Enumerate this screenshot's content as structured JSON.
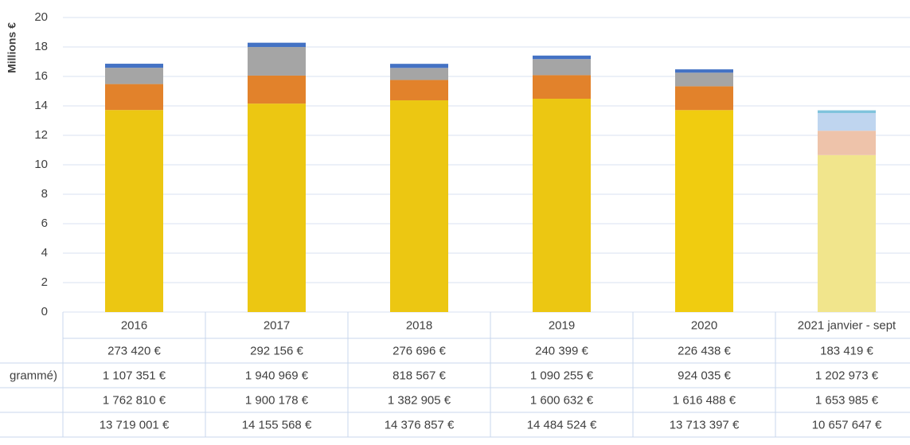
{
  "chart_data": {
    "type": "stacked_bar",
    "y_label": "Millions €",
    "categories": [
      "2016",
      "2017",
      "2018",
      "2019",
      "2020",
      "2021 janvier - sept"
    ],
    "ylim": [
      0,
      20
    ],
    "yticks": [
      0,
      2,
      4,
      6,
      8,
      10,
      12,
      14,
      16,
      18,
      20
    ],
    "grid": true,
    "data_table": true,
    "series": [
      {
        "color": "#ecc712",
        "colors": [
          "#ecc712",
          "#ecc712",
          "#ecc712",
          "#ecc712",
          "#f0cc10",
          "#f1e58c"
        ],
        "values": [
          13.719001,
          14.155568,
          14.376857,
          14.484524,
          13.713397,
          10.657647
        ],
        "value_labels": [
          "13 719 001 €",
          "14 155 568 €",
          "14 376 857 €",
          "14 484 524 €",
          "13 713 397 €",
          "10 657 647 €"
        ]
      },
      {
        "color": "#e2822b",
        "colors": [
          "#e2822b",
          "#e2822b",
          "#e2822b",
          "#e2822b",
          "#e2822b",
          "#eec3aa"
        ],
        "values": [
          1.76281,
          1.900178,
          1.382905,
          1.600632,
          1.616488,
          1.653985
        ],
        "value_labels": [
          "1 762 810 €",
          "1 900 178 €",
          "1 382 905 €",
          "1 600 632 €",
          "1 616 488 €",
          "1 653 985 €"
        ]
      },
      {
        "name": "grammé)",
        "color": "#a5a5a5",
        "colors": [
          "#a5a5a5",
          "#a5a5a5",
          "#a5a5a5",
          "#a5a5a5",
          "#a5a5a5",
          "#bfd5ef"
        ],
        "values": [
          1.107351,
          1.940969,
          0.818567,
          1.090255,
          0.924035,
          1.202973
        ],
        "value_labels": [
          "1 107 351 €",
          "1 940 969 €",
          "818 567 €",
          "1 090 255 €",
          "924 035 €",
          "1 202 973 €"
        ]
      },
      {
        "color": "#4472c4",
        "colors": [
          "#4472c4",
          "#4472c4",
          "#4472c4",
          "#4472c4",
          "#4472c4",
          "#7fc3dc"
        ],
        "values": [
          0.27342,
          0.292156,
          0.276696,
          0.240399,
          0.226438,
          0.183419
        ],
        "value_labels": [
          "273 420 €",
          "292 156 €",
          "276 696 €",
          "240 399 €",
          "226 438 €",
          "183 419 €"
        ]
      }
    ]
  }
}
